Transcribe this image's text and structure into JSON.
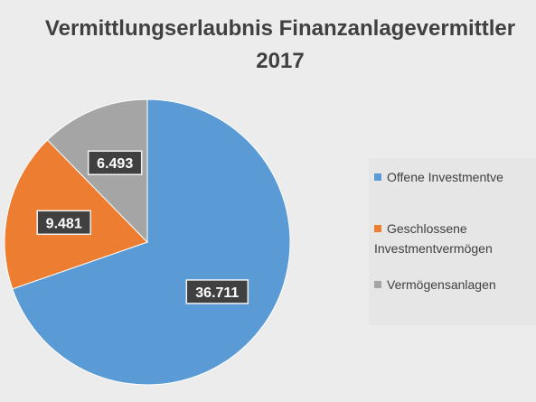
{
  "chart_data": {
    "type": "pie",
    "title_lines": [
      "Vermittlungserlaubnis Finanzanlagevermittler",
      "2017"
    ],
    "slices": [
      {
        "label": "Offene Investmentvermögen",
        "value": 36711,
        "value_label": "36.711",
        "color": "#5b9bd5"
      },
      {
        "label": "Geschlossene Investmentvermögen",
        "value": 9481,
        "value_label": "9.481",
        "color": "#ed7d31"
      },
      {
        "label": "Vermögensanlagen",
        "value": 6493,
        "value_label": "6.493",
        "color": "#a5a5a5"
      }
    ],
    "legend_position": "right",
    "legend": [
      {
        "lines": [
          "Offene Investmentve"
        ],
        "color": "#5b9bd5"
      },
      {
        "lines": [
          "Geschlossene",
          "Investmentvermögen"
        ],
        "color": "#ed7d31"
      },
      {
        "lines": [
          "Vermögensanlagen"
        ],
        "color": "#a5a5a5"
      }
    ]
  }
}
